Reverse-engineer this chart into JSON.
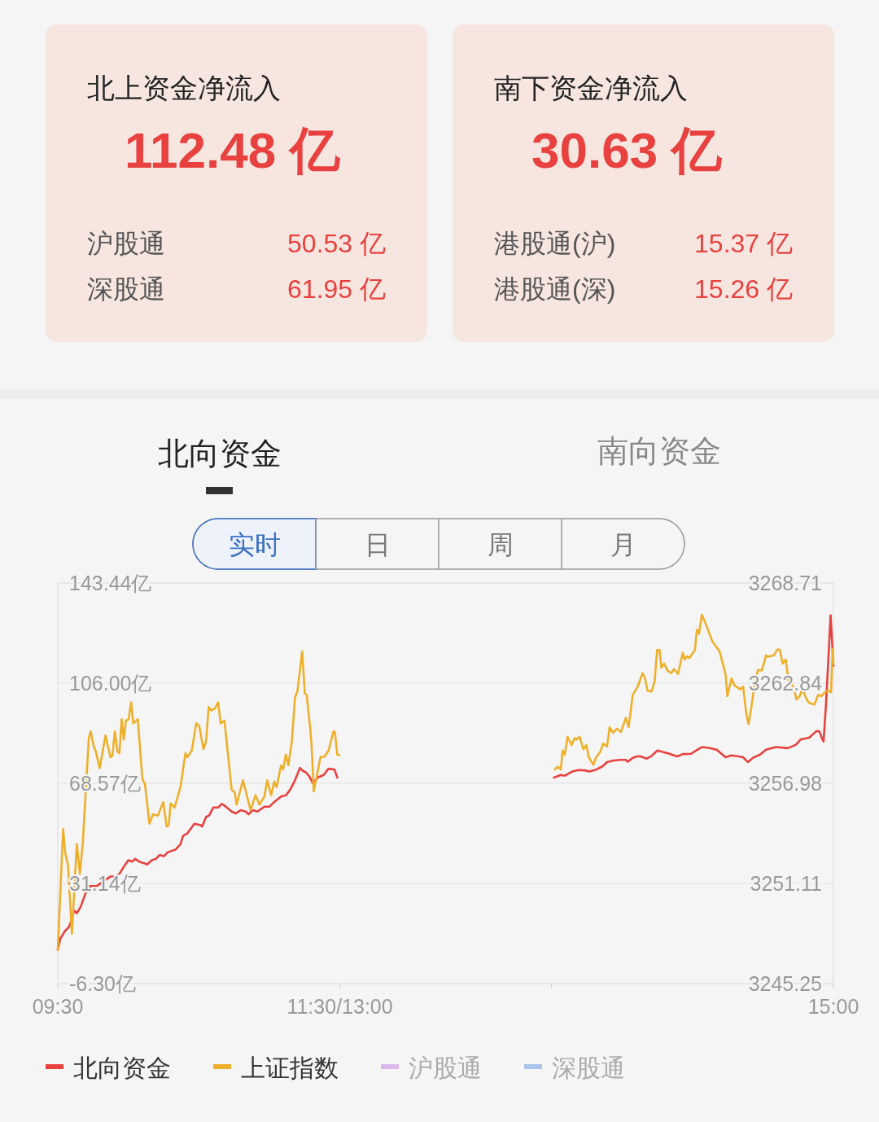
{
  "chart_data": [
    {
      "type": "other",
      "title": "北上资金净流入",
      "annotations": [
        "112.48 亿",
        "沪股通",
        "50.53 亿",
        "深股通",
        "61.95 亿"
      ]
    },
    {
      "type": "other",
      "title": "南下资金净流入",
      "annotations": [
        "30.63 亿",
        "港股通(沪)",
        "15.37 亿",
        "港股通(深)",
        "15.26 亿"
      ]
    },
    {
      "type": "line",
      "annotations": [
        "北向资金",
        "南向资金",
        "实时",
        "日",
        "周",
        "月"
      ],
      "xlim": [
        9.5,
        15
      ],
      "xticks": [
        {
          "value": 9.5,
          "label": "09:30"
        },
        {
          "value": 11.5,
          "label": "11:30/13:00"
        },
        {
          "value": 13,
          "label": null
        },
        {
          "value": 15,
          "label": "15:00"
        }
      ],
      "ylim": [
        -6.3,
        143.44
      ],
      "yticks": [
        {
          "value": -6.3,
          "label": "-6.30亿"
        },
        {
          "value": 31.14,
          "label": "31.14亿"
        },
        {
          "value": 68.57,
          "label": "68.57亿"
        },
        {
          "value": 106.0,
          "label": "106.00亿"
        },
        {
          "value": 143.44,
          "label": "143.44亿"
        }
      ],
      "y2lim": [
        3245.25,
        3268.71
      ],
      "y2ticks": [
        3245.25,
        3251.11,
        3256.98,
        3262.84,
        3268.71
      ],
      "grid": "y",
      "legend": "bottom",
      "series": [
        {
          "name": "北向资金",
          "color": "#e8413f",
          "x": [
            9.5,
            9.517,
            9.552,
            9.58,
            9.6,
            9.615,
            9.635,
            9.663,
            9.705,
            9.727,
            9.775,
            9.818,
            9.845,
            9.873,
            9.902,
            9.937,
            9.972,
            10.0,
            10.028,
            10.048,
            10.077,
            10.112,
            10.133,
            10.167,
            10.195,
            10.223,
            10.252,
            10.28,
            10.335,
            10.37,
            10.388,
            10.42,
            10.447,
            10.468,
            10.51,
            10.523,
            10.552,
            10.573,
            10.602,
            10.637,
            10.663,
            10.685,
            10.733,
            10.762,
            10.797,
            10.832,
            10.853,
            10.882,
            10.915,
            10.965,
            11.0,
            11.035,
            11.083,
            11.118,
            11.147,
            11.182,
            11.217,
            11.238,
            11.258,
            11.283,
            11.308,
            11.343,
            11.385,
            11.42,
            11.462,
            11.482,
            12.25,
            13.018,
            13.067,
            13.095,
            13.15,
            13.192,
            13.235,
            13.27,
            13.318,
            13.36,
            13.395,
            13.443,
            13.487,
            13.528,
            13.542,
            13.577,
            13.612,
            13.64,
            13.675,
            13.703,
            13.752,
            13.8,
            13.837,
            13.892,
            13.933,
            13.99,
            14.025,
            14.067,
            14.115,
            14.172,
            14.235,
            14.277,
            14.318,
            14.36,
            14.393,
            14.43,
            14.48,
            14.522,
            14.592,
            14.675,
            14.732,
            14.767,
            14.828,
            14.878,
            14.9,
            14.92,
            14.93,
            14.948,
            14.98,
            15
          ],
          "values": [
            6.3,
            10.4,
            13.4,
            14.9,
            18.0,
            21.0,
            20.0,
            22.5,
            28.6,
            30.1,
            30.1,
            31.7,
            32.7,
            33.7,
            33.7,
            34.7,
            37.7,
            39.8,
            39.3,
            40.3,
            39.3,
            38.7,
            38.2,
            39.8,
            40.3,
            41.8,
            41.3,
            42.8,
            43.8,
            45.8,
            48.9,
            49.9,
            51.9,
            53.4,
            53.0,
            52.4,
            56.0,
            56.5,
            59.5,
            59.5,
            60.9,
            60.1,
            58.0,
            57.3,
            58.5,
            58.0,
            57.0,
            58.5,
            58.0,
            59.8,
            59.8,
            61.6,
            63.6,
            64.1,
            66.1,
            69.7,
            74.3,
            73.2,
            72.7,
            71.2,
            68.7,
            70.7,
            71.7,
            74.0,
            73.7,
            70.7,
            null,
            70.7,
            71.7,
            71.4,
            73.0,
            73.5,
            73.4,
            73.0,
            73.7,
            74.8,
            76.5,
            77.1,
            77.3,
            77.3,
            76.6,
            78.1,
            78.7,
            78.5,
            77.8,
            78.5,
            80.8,
            80.1,
            79.6,
            78.6,
            79.5,
            79.6,
            80.8,
            82.1,
            81.8,
            81.1,
            78.3,
            79.0,
            78.7,
            78.3,
            76.5,
            78.1,
            79.3,
            81.1,
            82.1,
            81.7,
            82.9,
            84.9,
            85.6,
            88.0,
            88.0,
            85.2,
            84.2,
            98.6,
            131.3,
            112.5
          ]
        },
        {
          "name": "上证指数",
          "color": "#eeb02b",
          "axis": "y2",
          "x": [
            9.5,
            9.538,
            9.552,
            9.573,
            9.6,
            9.635,
            9.657,
            9.678,
            9.72,
            9.733,
            9.755,
            9.768,
            9.797,
            9.818,
            9.838,
            9.873,
            9.887,
            9.905,
            9.923,
            9.937,
            9.953,
            9.968,
            9.983,
            10.002,
            10.02,
            10.035,
            10.067,
            10.1,
            10.118,
            10.15,
            10.175,
            10.21,
            10.248,
            10.272,
            10.287,
            10.3,
            10.328,
            10.37,
            10.405,
            10.42,
            10.45,
            10.482,
            10.503,
            10.533,
            10.552,
            10.57,
            10.59,
            10.615,
            10.637,
            10.655,
            10.682,
            10.733,
            10.755,
            10.768,
            10.813,
            10.867,
            10.902,
            10.93,
            10.965,
            10.985,
            11.013,
            11.035,
            11.052,
            11.083,
            11.098,
            11.117,
            11.135,
            11.16,
            11.182,
            11.2,
            11.233,
            11.252,
            11.265,
            11.293,
            11.3,
            11.315,
            11.363,
            11.392,
            11.42,
            11.455,
            11.465,
            11.482,
            11.497,
            12.25,
            13.025,
            13.045,
            13.067,
            13.08,
            13.095,
            13.115,
            13.143,
            13.165,
            13.178,
            13.2,
            13.227,
            13.248,
            13.265,
            13.297,
            13.318,
            13.347,
            13.367,
            13.395,
            13.413,
            13.437,
            13.465,
            13.493,
            13.528,
            13.548,
            13.577,
            13.612,
            13.647,
            13.662,
            13.682,
            13.71,
            13.732,
            13.75,
            13.767,
            13.78,
            13.8,
            13.822,
            13.85,
            13.87,
            13.898,
            13.932,
            13.945,
            13.962,
            13.978,
            14.018,
            14.032,
            14.047,
            14.067,
            14.088,
            14.143,
            14.193,
            14.213,
            14.235,
            14.248,
            14.277,
            14.298,
            14.34,
            14.36,
            14.382,
            14.398,
            14.417,
            14.445,
            14.465,
            14.493,
            14.522,
            14.535,
            14.577,
            14.605,
            14.62,
            14.64,
            14.662,
            14.682,
            14.717,
            14.738,
            14.76,
            14.78,
            14.808,
            14.828,
            14.865,
            14.892,
            14.913,
            14.942,
            14.962,
            14.983,
            14.995,
            15
          ],
          "values": [
            3247.22,
            3254.3,
            3252.94,
            3252.15,
            3248.17,
            3253.42,
            3251.67,
            3253.58,
            3259.62,
            3260.02,
            3259.14,
            3258.9,
            3257.87,
            3258.83,
            3259.78,
            3258.51,
            3258.59,
            3260.02,
            3258.83,
            3258.74,
            3260.73,
            3259.54,
            3260.65,
            3260.73,
            3261.72,
            3260.49,
            3260.73,
            3257.23,
            3256.92,
            3254.61,
            3255.17,
            3255.09,
            3255.88,
            3254.45,
            3254.53,
            3255.8,
            3255.56,
            3256.76,
            3258.74,
            3258.51,
            3258.9,
            3260.49,
            3260.33,
            3258.98,
            3259.46,
            3261.45,
            3261.24,
            3261.37,
            3261.72,
            3260.49,
            3260.65,
            3256.6,
            3256.44,
            3255.73,
            3257.16,
            3255.41,
            3256.28,
            3255.73,
            3256.2,
            3257.16,
            3256.28,
            3257.08,
            3256.76,
            3258.03,
            3257.79,
            3258.66,
            3258.03,
            3259.46,
            3262.0,
            3262.4,
            3264.7,
            3262.24,
            3262.16,
            3259.94,
            3259.14,
            3256.52,
            3258.51,
            3258.54,
            3258.9,
            3260.02,
            3259.98,
            3258.66,
            3258.63,
            null,
            3257.79,
            3257.95,
            3257.79,
            3258.9,
            3258.66,
            3259.7,
            3259.22,
            3259.62,
            3259.54,
            3259.7,
            3258.98,
            3259.22,
            3258.51,
            3258.06,
            3258.51,
            3258.83,
            3259.3,
            3259.14,
            3260.26,
            3259.94,
            3260.18,
            3259.98,
            3260.81,
            3260.28,
            3262.16,
            3262.64,
            3263.43,
            3263.19,
            3262.4,
            3262.35,
            3262.95,
            3264.79,
            3264.79,
            3263.75,
            3263.99,
            3263.59,
            3263.43,
            3263.67,
            3263.38,
            3264.62,
            3264.23,
            3264.42,
            3264.31,
            3264.79,
            3265.98,
            3265.74,
            3266.85,
            3266.45,
            3265.26,
            3264.7,
            3264.07,
            3263.36,
            3262.08,
            3263.12,
            3262.72,
            3262.48,
            3262.64,
            3261.05,
            3260.45,
            3261.37,
            3262.95,
            3263.62,
            3263.59,
            3264.47,
            3264.39,
            3264.47,
            3264.83,
            3264.79,
            3263.99,
            3264.23,
            3262.95,
            3262.64,
            3261.88,
            3262.08,
            3262.51,
            3261.92,
            3261.69,
            3261.59,
            3262.16,
            3262.08,
            3262.32,
            3262.4,
            3262.32,
            3264.86,
            3263.99
          ]
        },
        {
          "name": "沪股通",
          "color": "#dcb8ee"
        },
        {
          "name": "深股通",
          "color": "#a9c5ea"
        }
      ]
    }
  ]
}
